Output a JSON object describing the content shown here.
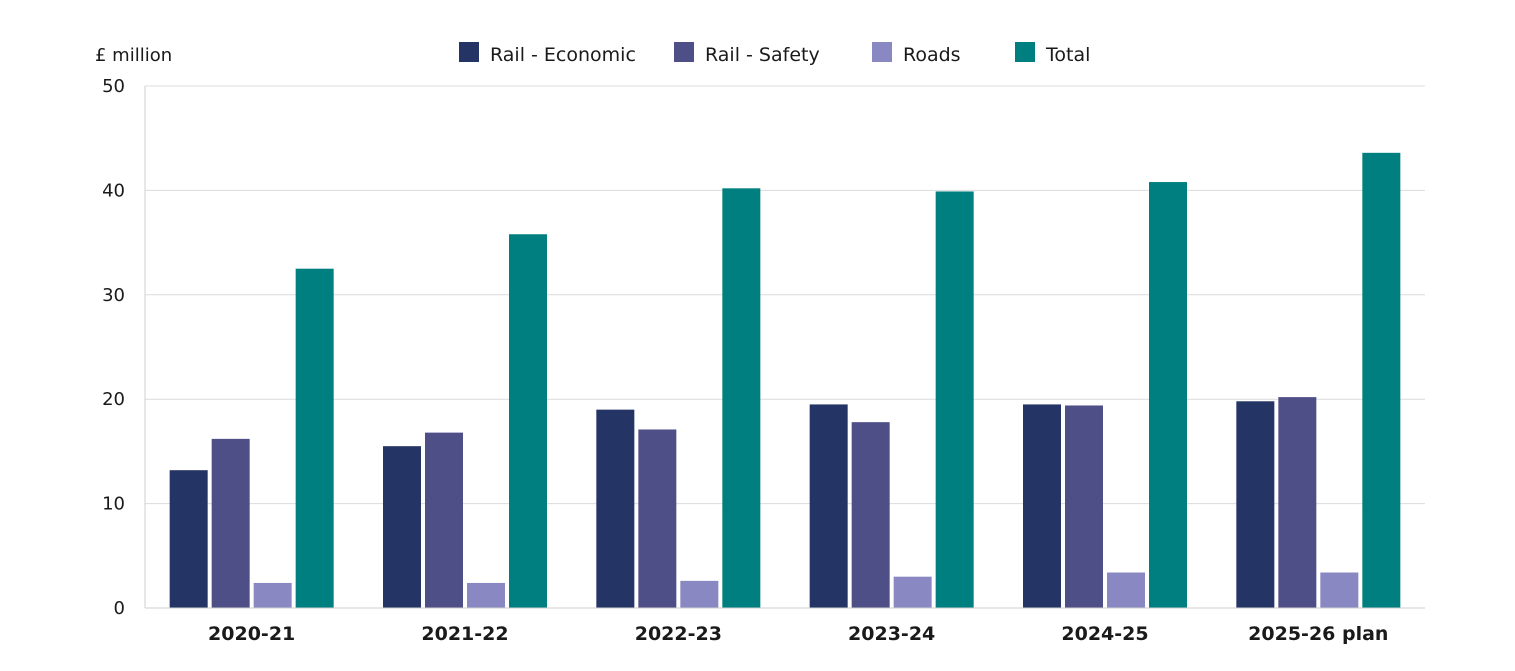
{
  "chart_data": {
    "type": "bar",
    "title": "",
    "ylabel": "£ million",
    "xlabel": "",
    "ylim": [
      0,
      50
    ],
    "yticks": [
      0,
      10,
      20,
      30,
      40,
      50
    ],
    "grid": true,
    "legend_position": "top",
    "categories": [
      "2020-21",
      "2021-22",
      "2022-23",
      "2023-24",
      "2024-25",
      "2025-26 plan"
    ],
    "series": [
      {
        "name": "Rail - Economic",
        "color": "#243465",
        "values": [
          13.2,
          15.5,
          19.0,
          19.5,
          19.5,
          19.8
        ]
      },
      {
        "name": "Rail - Safety",
        "color": "#4f4f88",
        "values": [
          16.2,
          16.8,
          17.1,
          17.8,
          19.4,
          20.2
        ]
      },
      {
        "name": "Roads",
        "color": "#8a88c2",
        "values": [
          2.4,
          2.4,
          2.6,
          3.0,
          3.4,
          3.4
        ]
      },
      {
        "name": "Total",
        "color": "#007f80",
        "values": [
          32.5,
          35.8,
          40.2,
          39.9,
          40.8,
          43.6
        ]
      }
    ]
  }
}
